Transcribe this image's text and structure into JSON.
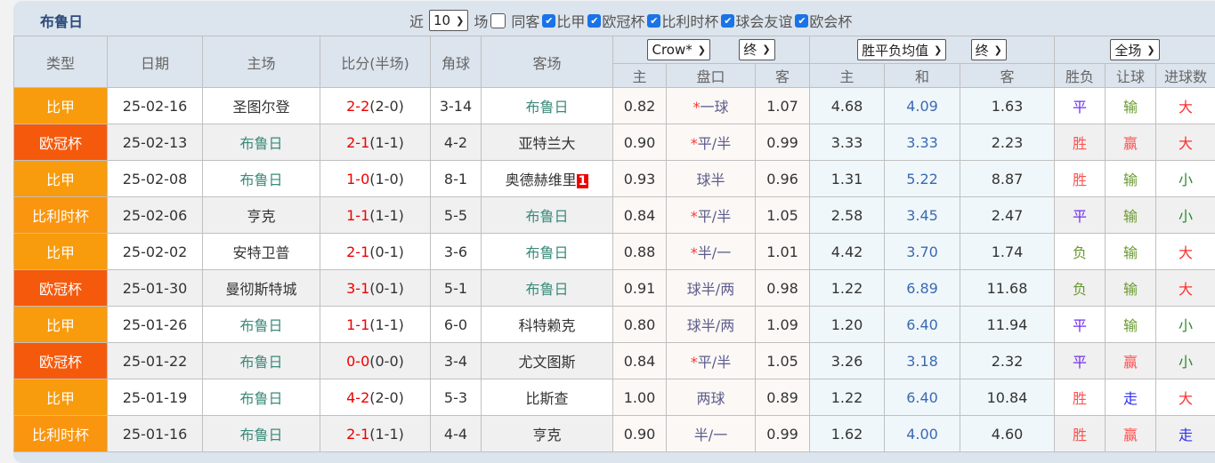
{
  "header": {
    "title": "布鲁日",
    "recent_label": "近",
    "recent_value": "10",
    "games_label": "场",
    "filters": [
      {
        "label": "同客",
        "checked": false
      },
      {
        "label": "比甲",
        "checked": true
      },
      {
        "label": "欧冠杯",
        "checked": true
      },
      {
        "label": "比利时杯",
        "checked": true
      },
      {
        "label": "球会友谊",
        "checked": true
      },
      {
        "label": "欧会杯",
        "checked": true
      }
    ]
  },
  "columns": {
    "type": "类型",
    "date": "日期",
    "home": "主场",
    "score": "比分(半场)",
    "corner": "角球",
    "away": "客场",
    "hc_company": "Crow*",
    "hc_stage": "终",
    "eu_type": "胜平负均值",
    "eu_stage": "终",
    "scope": "全场",
    "hc_home": "主",
    "hc_line": "盘口",
    "hc_away": "客",
    "eu_home": "主",
    "eu_draw": "和",
    "eu_away": "客",
    "res_wl": "胜负",
    "res_hc": "让球",
    "res_goals": "进球数"
  },
  "colors": {
    "比甲": "#F89B0C",
    "欧冠杯": "#F55A0C",
    "比利时杯": "#F9950F",
    "win": "#ff5050",
    "draw": "#7030f0",
    "lose": "#6a9a30",
    "push": "#3030f0",
    "big": "#ff3030",
    "small": "#2a8a2a"
  },
  "rows": [
    {
      "type": "比甲",
      "date": "25-02-16",
      "home": "圣图尔登",
      "home_is_team": false,
      "ft": "2-2",
      "ht": "(2-0)",
      "corner": "3-14",
      "away": "布鲁日",
      "away_is_team": true,
      "rank": "",
      "hh": "0.82",
      "star": "*",
      "line": "一球",
      "ha": "1.07",
      "eh": "4.68",
      "ed": "4.09",
      "ea": "1.63",
      "wl": "平",
      "hr": "输",
      "gl": "大"
    },
    {
      "type": "欧冠杯",
      "date": "25-02-13",
      "home": "布鲁日",
      "home_is_team": true,
      "ft": "2-1",
      "ht": "(1-1)",
      "corner": "4-2",
      "away": "亚特兰大",
      "away_is_team": false,
      "rank": "",
      "hh": "0.90",
      "star": "*",
      "line": "平/半",
      "ha": "0.99",
      "eh": "3.33",
      "ed": "3.33",
      "ea": "2.23",
      "wl": "胜",
      "hr": "赢",
      "gl": "大"
    },
    {
      "type": "比甲",
      "date": "25-02-08",
      "home": "布鲁日",
      "home_is_team": true,
      "ft": "1-0",
      "ht": "(1-0)",
      "corner": "8-1",
      "away": "奥德赫维里",
      "away_is_team": false,
      "rank": "1",
      "hh": "0.93",
      "star": "",
      "line": "球半",
      "ha": "0.96",
      "eh": "1.31",
      "ed": "5.22",
      "ea": "8.87",
      "wl": "胜",
      "hr": "输",
      "gl": "小"
    },
    {
      "type": "比利时杯",
      "date": "25-02-06",
      "home": "亨克",
      "home_is_team": false,
      "ft": "1-1",
      "ht": "(1-1)",
      "corner": "5-5",
      "away": "布鲁日",
      "away_is_team": true,
      "rank": "",
      "hh": "0.84",
      "star": "*",
      "line": "平/半",
      "ha": "1.05",
      "eh": "2.58",
      "ed": "3.45",
      "ea": "2.47",
      "wl": "平",
      "hr": "输",
      "gl": "小"
    },
    {
      "type": "比甲",
      "date": "25-02-02",
      "home": "安特卫普",
      "home_is_team": false,
      "ft": "2-1",
      "ht": "(0-1)",
      "corner": "3-6",
      "away": "布鲁日",
      "away_is_team": true,
      "rank": "",
      "hh": "0.88",
      "star": "*",
      "line": "半/一",
      "ha": "1.01",
      "eh": "4.42",
      "ed": "3.70",
      "ea": "1.74",
      "wl": "负",
      "hr": "输",
      "gl": "大"
    },
    {
      "type": "欧冠杯",
      "date": "25-01-30",
      "home": "曼彻斯特城",
      "home_is_team": false,
      "ft": "3-1",
      "ht": "(0-1)",
      "corner": "5-1",
      "away": "布鲁日",
      "away_is_team": true,
      "rank": "",
      "hh": "0.91",
      "star": "",
      "line": "球半/两",
      "ha": "0.98",
      "eh": "1.22",
      "ed": "6.89",
      "ea": "11.68",
      "wl": "负",
      "hr": "输",
      "gl": "大"
    },
    {
      "type": "比甲",
      "date": "25-01-26",
      "home": "布鲁日",
      "home_is_team": true,
      "ft": "1-1",
      "ht": "(1-1)",
      "corner": "6-0",
      "away": "科特赖克",
      "away_is_team": false,
      "rank": "",
      "hh": "0.80",
      "star": "",
      "line": "球半/两",
      "ha": "1.09",
      "eh": "1.20",
      "ed": "6.40",
      "ea": "11.94",
      "wl": "平",
      "hr": "输",
      "gl": "小"
    },
    {
      "type": "欧冠杯",
      "date": "25-01-22",
      "home": "布鲁日",
      "home_is_team": true,
      "ft": "0-0",
      "ht": "(0-0)",
      "corner": "3-4",
      "away": "尤文图斯",
      "away_is_team": false,
      "rank": "",
      "hh": "0.84",
      "star": "*",
      "line": "平/半",
      "ha": "1.05",
      "eh": "3.26",
      "ed": "3.18",
      "ea": "2.32",
      "wl": "平",
      "hr": "赢",
      "gl": "小"
    },
    {
      "type": "比甲",
      "date": "25-01-19",
      "home": "布鲁日",
      "home_is_team": true,
      "ft": "4-2",
      "ht": "(2-0)",
      "corner": "5-3",
      "away": "比斯查",
      "away_is_team": false,
      "rank": "",
      "hh": "1.00",
      "star": "",
      "line": "两球",
      "ha": "0.89",
      "eh": "1.22",
      "ed": "6.40",
      "ea": "10.84",
      "wl": "胜",
      "hr": "走",
      "gl": "大"
    },
    {
      "type": "比利时杯",
      "date": "25-01-16",
      "home": "布鲁日",
      "home_is_team": true,
      "ft": "2-1",
      "ht": "(1-1)",
      "corner": "4-4",
      "away": "亨克",
      "away_is_team": false,
      "rank": "",
      "hh": "0.90",
      "star": "",
      "line": "半/一",
      "ha": "0.99",
      "eh": "1.62",
      "ed": "4.00",
      "ea": "4.60",
      "wl": "胜",
      "hr": "赢",
      "gl": "走"
    }
  ]
}
